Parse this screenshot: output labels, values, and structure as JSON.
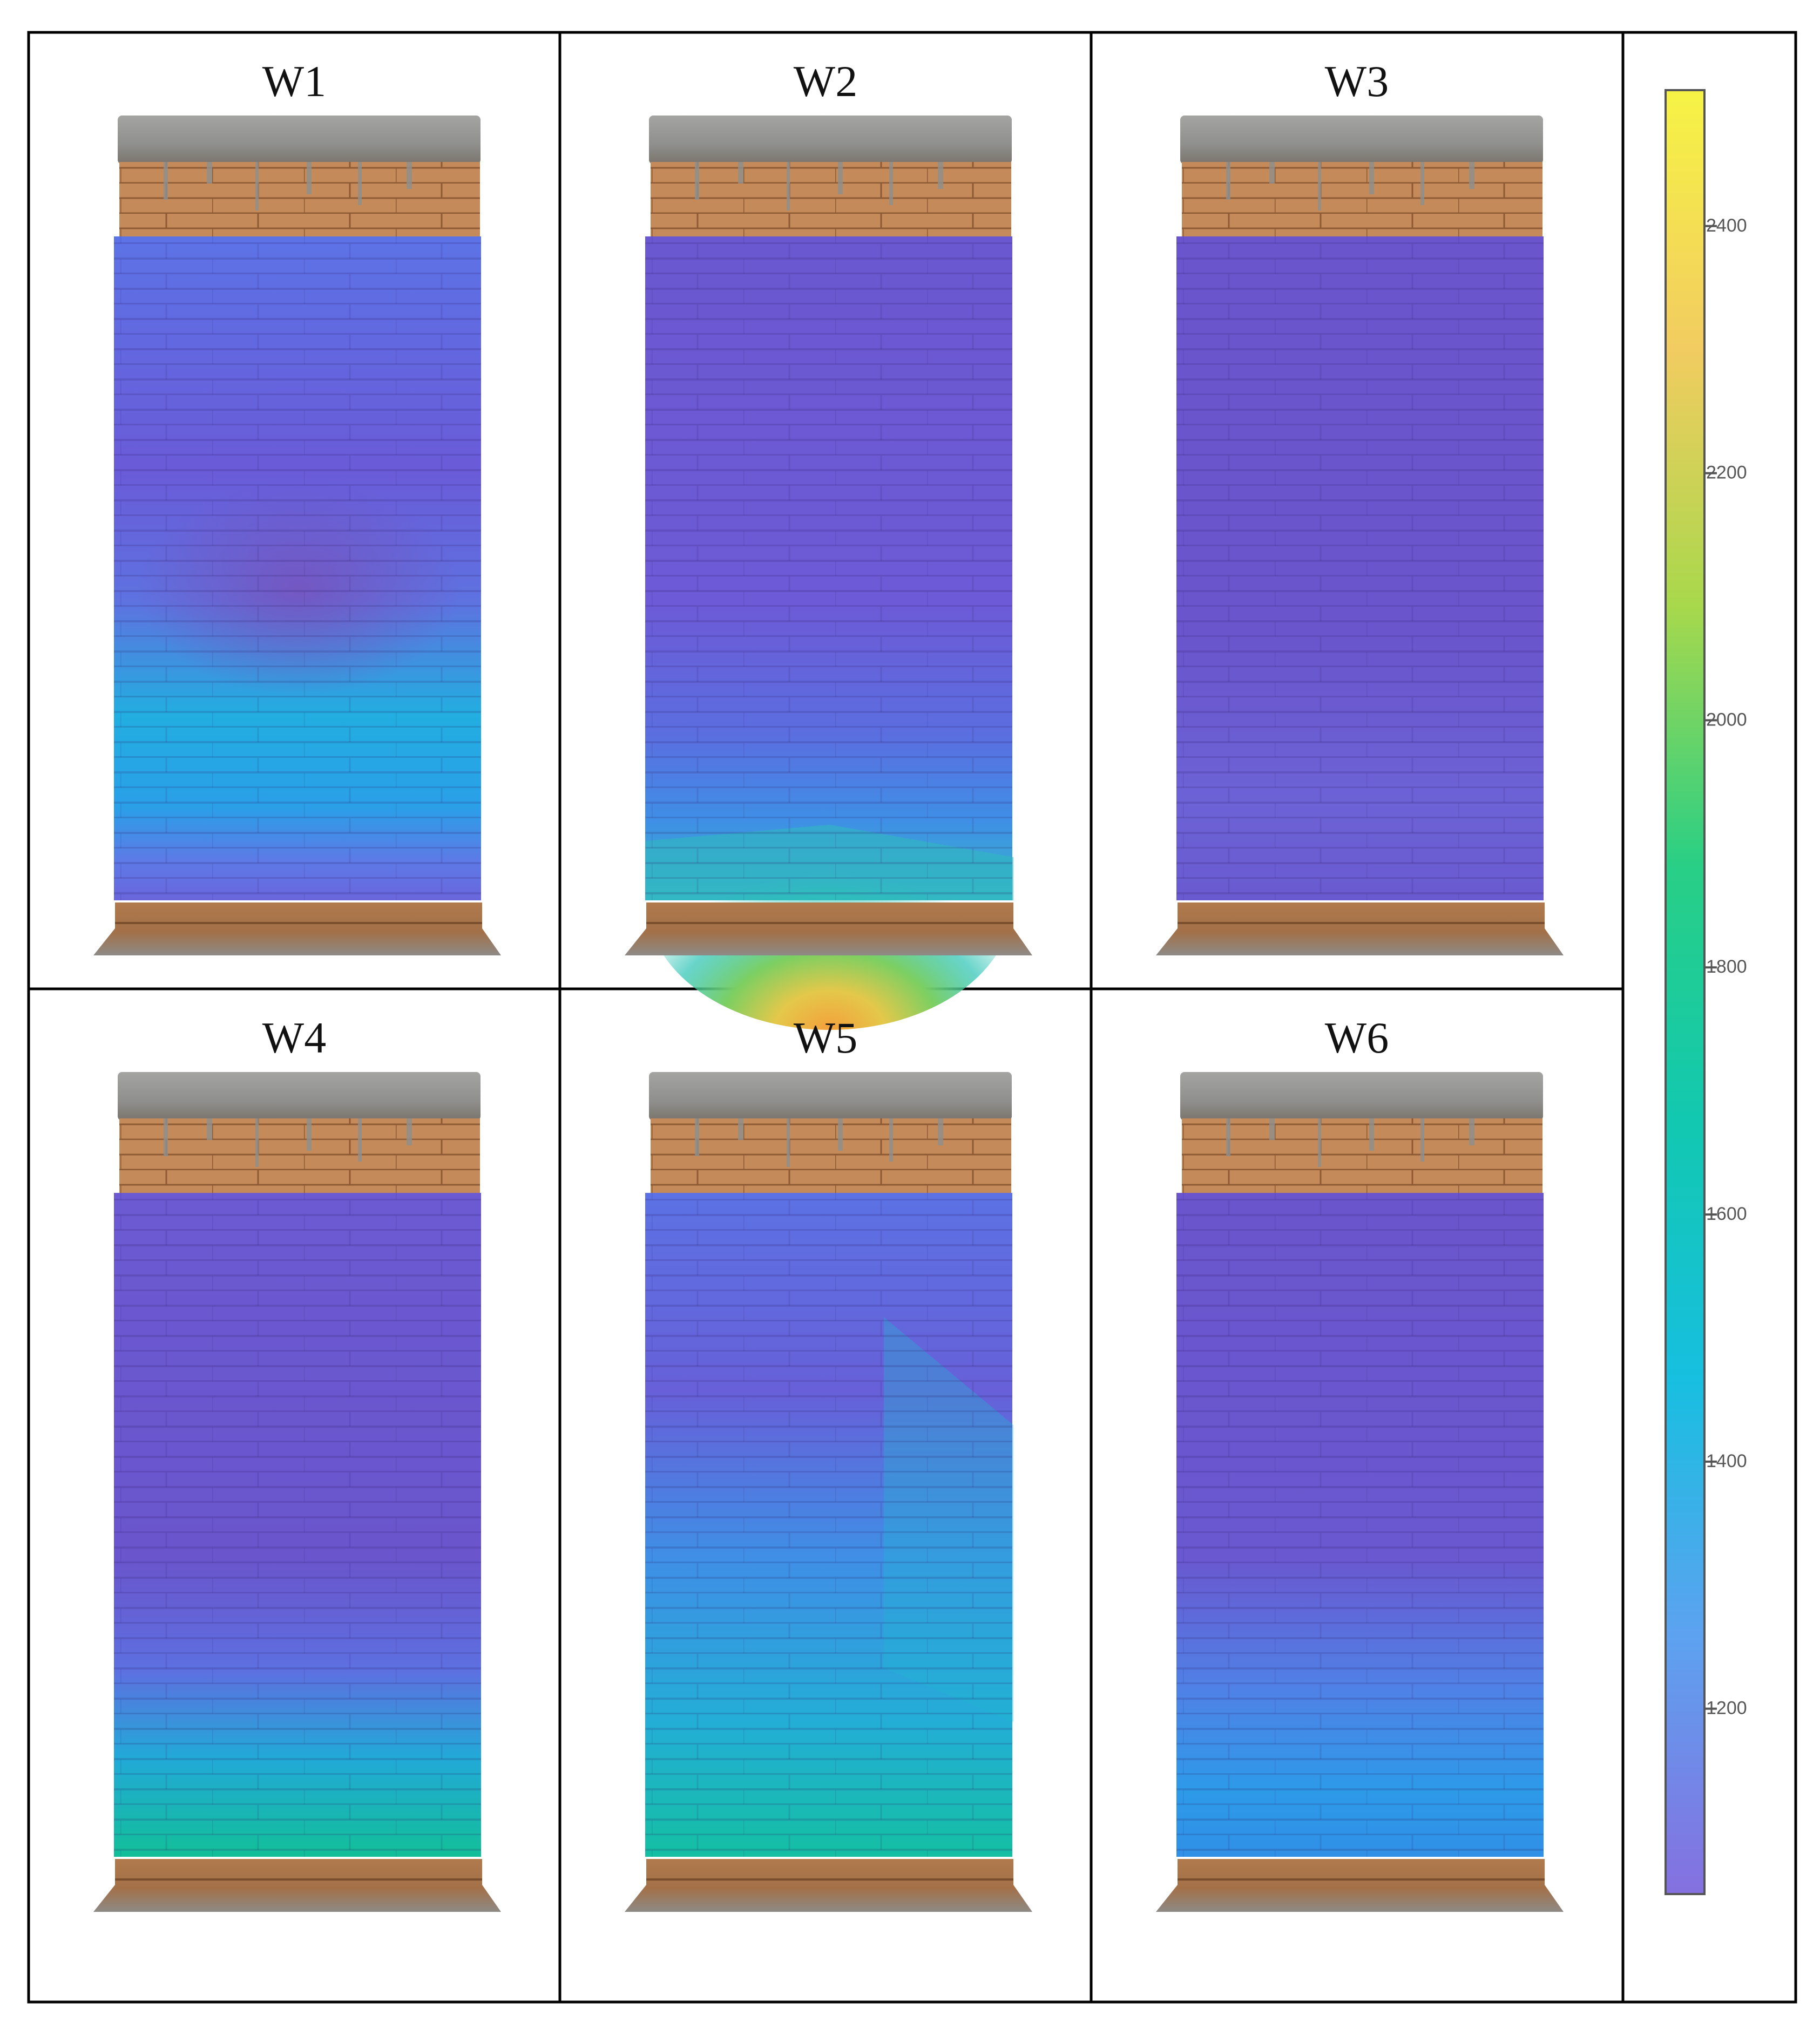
{
  "panels": [
    {
      "id": "W1",
      "label": "W1",
      "pattern": "w1"
    },
    {
      "id": "W2",
      "label": "W2",
      "pattern": "w2"
    },
    {
      "id": "W3",
      "label": "W3",
      "pattern": "w3"
    },
    {
      "id": "W4",
      "label": "W4",
      "pattern": "w4"
    },
    {
      "id": "W5",
      "label": "W5",
      "pattern": "w5"
    },
    {
      "id": "W6",
      "label": "W6",
      "pattern": "w6"
    }
  ],
  "colorbar": {
    "ticks": [
      "2400",
      "2200",
      "2000",
      "1800",
      "1600",
      "1400",
      "1200"
    ],
    "min": 1050,
    "max": 2510,
    "colors": [
      "#8570e0",
      "#5da2f0",
      "#17bfe0",
      "#12c8b0",
      "#29cf85",
      "#a8d84c",
      "#f2cc60",
      "#f6f345"
    ]
  },
  "colors": {
    "border": "#000000",
    "concrete": "#9a9a98",
    "brick": "#c58a5a",
    "base_purple": "#6a4fc4"
  }
}
